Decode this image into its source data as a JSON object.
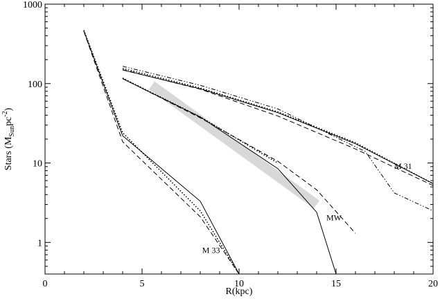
{
  "chart_data": {
    "type": "line",
    "title": "",
    "xlabel": "R(kpc)",
    "ylabel": {
      "main": "Stars (M",
      "sub": "Sun",
      "mid": "pc",
      "sup": "-2",
      "end": ")"
    },
    "xlim": [
      0,
      20
    ],
    "ylim": [
      0.4,
      1000
    ],
    "yscale": "log",
    "grid": false,
    "x_ticks": [
      0,
      5,
      10,
      15,
      20
    ],
    "x_tick_labels": [
      "0",
      "5",
      "10",
      "15",
      "20"
    ],
    "y_ticks": [
      1,
      10,
      100,
      1000
    ],
    "y_tick_labels": [
      "1",
      "10",
      "100",
      "1000"
    ],
    "annotations": [
      {
        "text": "M 31",
        "x": 18.0,
        "y": 8.4
      },
      {
        "text": "MW",
        "x": 14.5,
        "y": 1.9
      },
      {
        "text": "M 33",
        "x": 8.1,
        "y": 0.74
      }
    ],
    "band": {
      "color": "#d8d8d8",
      "x0": 5.5,
      "y0": 95,
      "x1": 14.0,
      "y1": 3.0
    },
    "series": [
      {
        "group": "M33",
        "style": "solid",
        "x": [
          2,
          4,
          8,
          10
        ],
        "y": [
          460,
          22,
          3.3,
          0.4
        ]
      },
      {
        "group": "M33",
        "style": "dotted",
        "x": [
          2,
          4,
          8,
          10
        ],
        "y": [
          470,
          24,
          2.5,
          0.4
        ]
      },
      {
        "group": "M33",
        "style": "dashed",
        "x": [
          2,
          4,
          8,
          10
        ],
        "y": [
          455,
          18.5,
          2.1,
          0.4
        ]
      },
      {
        "group": "MW",
        "style": "solid",
        "x": [
          4,
          8,
          12,
          14,
          15
        ],
        "y": [
          115,
          38,
          8.5,
          2.4,
          0.4
        ]
      },
      {
        "group": "MW",
        "style": "dashed",
        "x": [
          4,
          8,
          12,
          14,
          16
        ],
        "y": [
          116,
          37,
          10.5,
          4.6,
          1.3
        ]
      },
      {
        "group": "MW",
        "style": "dotted",
        "x": [
          4,
          8,
          12
        ],
        "y": [
          117,
          38,
          10
        ]
      },
      {
        "group": "M31",
        "style": "solid",
        "x": [
          4,
          8,
          12,
          16,
          20
        ],
        "y": [
          148,
          86,
          43,
          17.5,
          5.5
        ]
      },
      {
        "group": "M31",
        "style": "dashed",
        "x": [
          4,
          8,
          12,
          16,
          20
        ],
        "y": [
          150,
          85,
          39,
          15,
          5.2
        ]
      },
      {
        "group": "M31",
        "style": "dotted",
        "x": [
          4,
          8,
          12,
          16,
          20
        ],
        "y": [
          155,
          88,
          44,
          18,
          5.5
        ]
      },
      {
        "group": "M31",
        "style": "dashdot",
        "x": [
          4,
          8,
          12,
          16,
          16.5,
          18,
          20
        ],
        "y": [
          165,
          95,
          48,
          16,
          14,
          4.2,
          2.5
        ]
      }
    ]
  }
}
